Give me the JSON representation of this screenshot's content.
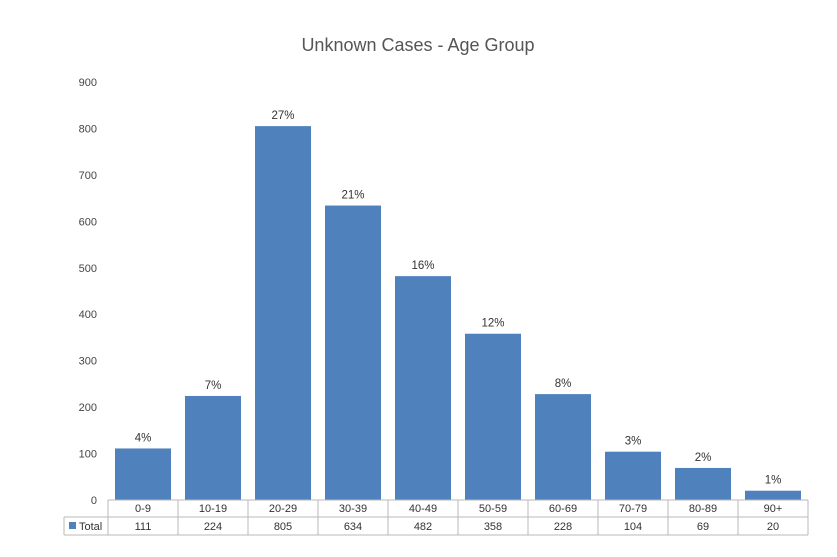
{
  "chart_data": {
    "type": "bar",
    "title": "Unknown Cases - Age Group",
    "xlabel": "",
    "ylabel": "",
    "ylim": [
      0,
      900
    ],
    "yticks": [
      "0",
      "100",
      "200",
      "300",
      "400",
      "500",
      "600",
      "700",
      "800",
      "900"
    ],
    "categories": [
      "0-9",
      "10-19",
      "20-29",
      "30-39",
      "40-49",
      "50-59",
      "60-69",
      "70-79",
      "80-89",
      "90+"
    ],
    "series": [
      {
        "name": "Total",
        "values": [
          111,
          224,
          805,
          634,
          482,
          358,
          228,
          104,
          69,
          20
        ],
        "data_labels": [
          "4%",
          "7%",
          "27%",
          "21%",
          "16%",
          "12%",
          "8%",
          "3%",
          "2%",
          "1%"
        ]
      }
    ],
    "grid": false,
    "legend": "data-table-left",
    "bar_color": "#4f81bd"
  }
}
